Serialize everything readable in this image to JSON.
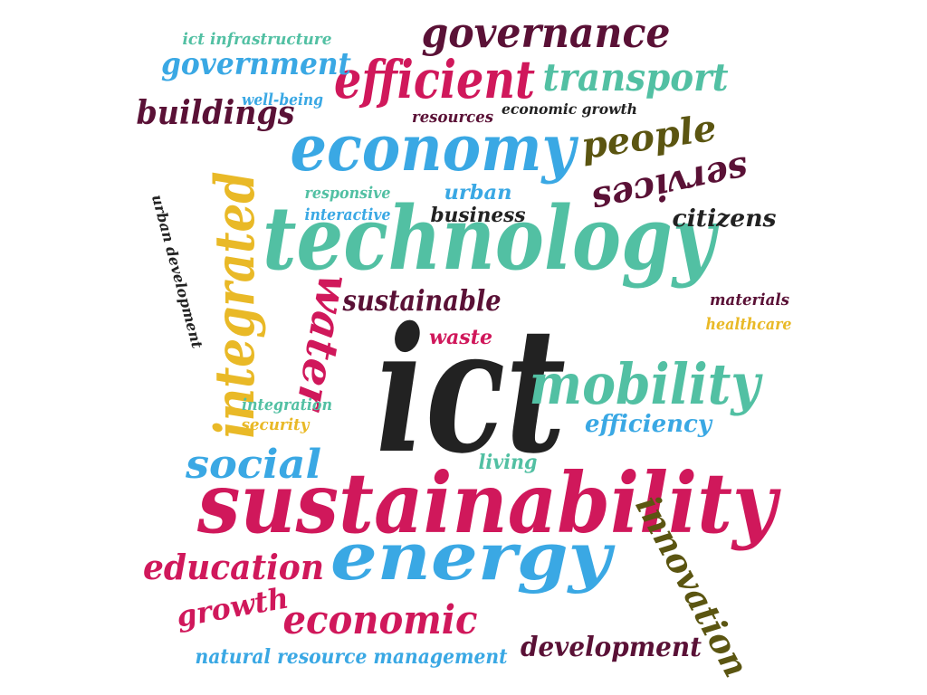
{
  "colors": {
    "crimson": "#d0185b",
    "teal": "#52c0a3",
    "blue": "#3aa8e4",
    "maroon": "#5a1136",
    "olive": "#5b5511",
    "yellow": "#e9b927",
    "dark": "#222222"
  },
  "words": [
    {
      "id": "ict",
      "text": "ict",
      "color": "dark"
    },
    {
      "id": "sustainability",
      "text": "sustainability",
      "color": "crimson"
    },
    {
      "id": "technology",
      "text": "technology",
      "color": "teal"
    },
    {
      "id": "economy",
      "text": "economy",
      "color": "blue"
    },
    {
      "id": "energy",
      "text": "energy",
      "color": "blue"
    },
    {
      "id": "mobility",
      "text": "mobility",
      "color": "teal"
    },
    {
      "id": "integrated",
      "text": "integrated",
      "color": "yellow"
    },
    {
      "id": "efficient",
      "text": "efficient",
      "color": "crimson"
    },
    {
      "id": "governance",
      "text": "governance",
      "color": "maroon"
    },
    {
      "id": "transport",
      "text": "transport",
      "color": "teal"
    },
    {
      "id": "government",
      "text": "government",
      "color": "blue"
    },
    {
      "id": "buildings",
      "text": "buildings",
      "color": "maroon"
    },
    {
      "id": "people",
      "text": "people",
      "color": "olive"
    },
    {
      "id": "services",
      "text": "services",
      "color": "maroon"
    },
    {
      "id": "citizens",
      "text": "citizens",
      "color": "dark"
    },
    {
      "id": "water",
      "text": "water",
      "color": "crimson"
    },
    {
      "id": "social",
      "text": "social",
      "color": "blue"
    },
    {
      "id": "education",
      "text": "education",
      "color": "crimson"
    },
    {
      "id": "economic",
      "text": "economic",
      "color": "crimson"
    },
    {
      "id": "innovation",
      "text": "innovation",
      "color": "olive"
    },
    {
      "id": "development",
      "text": "development",
      "color": "maroon"
    },
    {
      "id": "growth",
      "text": "growth",
      "color": "crimson"
    },
    {
      "id": "natural-resource-management",
      "text": "natural resource management",
      "color": "blue"
    },
    {
      "id": "sustainable",
      "text": "sustainable",
      "color": "maroon"
    },
    {
      "id": "waste",
      "text": "waste",
      "color": "crimson"
    },
    {
      "id": "efficiency",
      "text": "efficiency",
      "color": "blue"
    },
    {
      "id": "living",
      "text": "living",
      "color": "teal"
    },
    {
      "id": "business",
      "text": "business",
      "color": "dark"
    },
    {
      "id": "urban",
      "text": "urban",
      "color": "blue"
    },
    {
      "id": "responsive",
      "text": "responsive",
      "color": "teal"
    },
    {
      "id": "interactive",
      "text": "interactive",
      "color": "blue"
    },
    {
      "id": "integration",
      "text": "integration",
      "color": "teal"
    },
    {
      "id": "security",
      "text": "security",
      "color": "yellow"
    },
    {
      "id": "materials",
      "text": "materials",
      "color": "maroon"
    },
    {
      "id": "healthcare",
      "text": "healthcare",
      "color": "yellow"
    },
    {
      "id": "urban-development",
      "text": "urban development",
      "color": "dark"
    },
    {
      "id": "ict-infrastructure",
      "text": "ict infrastructure",
      "color": "teal"
    },
    {
      "id": "well-being",
      "text": "well-being",
      "color": "blue"
    },
    {
      "id": "resources",
      "text": "resources",
      "color": "maroon"
    },
    {
      "id": "economic-growth",
      "text": "economic growth",
      "color": "dark"
    }
  ]
}
